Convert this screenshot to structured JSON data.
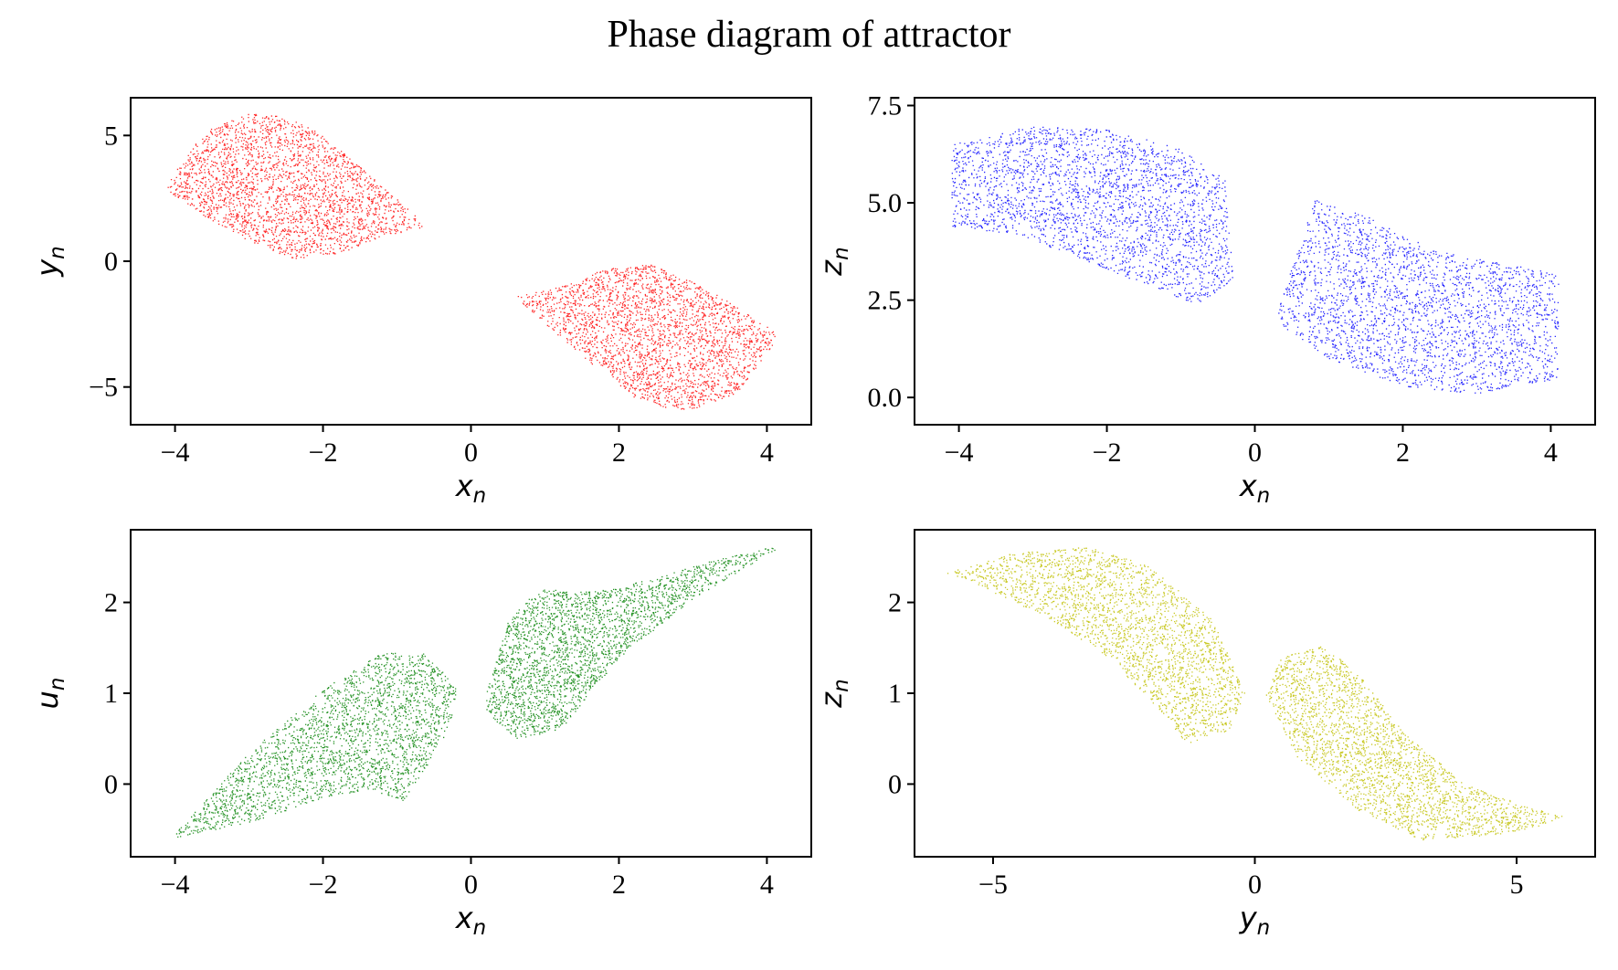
{
  "figure": {
    "title": "Phase diagram of attractor"
  },
  "chart_data": [
    {
      "type": "scatter",
      "xlabel": "x",
      "xlabel_sub": "n",
      "ylabel": "y",
      "ylabel_sub": "n",
      "xlim": [
        -4.6,
        4.6
      ],
      "ylim": [
        -6.5,
        6.5
      ],
      "xticks": [
        -4,
        -2,
        0,
        2,
        4
      ],
      "yticks": [
        -5,
        0,
        5
      ],
      "color": "#ff0000",
      "series": [
        {
          "region": "left-lobe",
          "x": [
            -4.1,
            -3.6,
            -3.0,
            -2.6,
            -2.2,
            -1.8,
            -1.2,
            -0.6,
            -0.3,
            -0.6,
            -1.2,
            -1.8,
            -2.4,
            -3.0,
            -3.6,
            -4.1
          ],
          "y": [
            3.2,
            5.2,
            5.9,
            5.8,
            5.4,
            4.5,
            3.0,
            1.4,
            0.4,
            1.4,
            1.0,
            0.3,
            0.1,
            0.8,
            1.8,
            2.8
          ]
        },
        {
          "region": "right-lobe",
          "x": [
            0.3,
            0.6,
            1.2,
            1.8,
            2.4,
            3.0,
            3.6,
            4.1,
            4.1,
            3.6,
            3.0,
            2.6,
            2.2,
            1.8,
            1.2,
            0.6
          ],
          "y": [
            -0.4,
            -1.4,
            -1.0,
            -0.3,
            -0.1,
            -0.8,
            -1.8,
            -2.8,
            -3.2,
            -5.2,
            -5.9,
            -5.8,
            -5.4,
            -4.5,
            -3.0,
            -1.4
          ]
        }
      ]
    },
    {
      "type": "scatter",
      "xlabel": "x",
      "xlabel_sub": "n",
      "ylabel": "z",
      "ylabel_sub": "n",
      "xlim": [
        -4.6,
        4.6
      ],
      "ylim": [
        -0.7,
        7.7
      ],
      "xticks": [
        -4,
        -2,
        0,
        2,
        4
      ],
      "yticks": [
        0.0,
        2.5,
        5.0,
        7.5
      ],
      "ytick_labels": [
        "0.0",
        "2.5",
        "5.0",
        "7.5"
      ],
      "color": "#0000ff",
      "series": [
        {
          "region": "left-cluster",
          "x": [
            -4.1,
            -3.0,
            -2.0,
            -1.0,
            -0.4,
            -0.3,
            -0.8,
            -1.6,
            -2.4,
            -3.2,
            -4.1
          ],
          "y": [
            6.5,
            7.0,
            6.9,
            6.4,
            5.6,
            3.0,
            2.4,
            3.0,
            3.6,
            4.2,
            4.4
          ]
        },
        {
          "region": "right-cluster",
          "x": [
            0.3,
            0.8,
            1.6,
            2.4,
            3.2,
            4.1,
            4.1,
            3.0,
            2.0,
            1.0,
            0.4
          ],
          "y": [
            2.2,
            5.1,
            4.6,
            3.8,
            3.5,
            3.2,
            0.5,
            0.1,
            0.3,
            1.0,
            1.8
          ]
        }
      ]
    },
    {
      "type": "scatter",
      "xlabel": "x",
      "xlabel_sub": "n",
      "ylabel": "u",
      "ylabel_sub": "n",
      "xlim": [
        -4.6,
        4.6
      ],
      "ylim": [
        -0.8,
        2.8
      ],
      "xticks": [
        -4,
        -2,
        0,
        2,
        4
      ],
      "yticks": [
        0,
        1,
        2
      ],
      "color": "#008000",
      "series": [
        {
          "region": "left-lobe",
          "x": [
            -4.1,
            -3.0,
            -2.0,
            -1.2,
            -0.6,
            -0.2,
            -0.3,
            -0.9,
            -1.4,
            -2.0,
            -3.0,
            -4.1
          ],
          "y": [
            -0.62,
            0.35,
            1.05,
            1.45,
            1.45,
            1.05,
            0.6,
            -0.18,
            -0.05,
            -0.15,
            -0.42,
            -0.6
          ]
        },
        {
          "region": "right-lobe",
          "x": [
            0.2,
            0.5,
            0.9,
            1.6,
            2.4,
            3.2,
            4.1,
            4.1,
            3.0,
            2.0,
            1.2,
            0.6,
            0.2
          ],
          "y": [
            1.0,
            1.8,
            2.15,
            2.12,
            2.25,
            2.45,
            2.62,
            2.58,
            2.05,
            1.4,
            0.6,
            0.5,
            0.8
          ]
        }
      ]
    },
    {
      "type": "scatter",
      "xlabel": "y",
      "xlabel_sub": "n",
      "ylabel": "z",
      "ylabel_sub": "n",
      "xlim": [
        -6.5,
        6.5
      ],
      "ylim": [
        -0.8,
        2.8
      ],
      "xticks": [
        -5,
        0,
        5
      ],
      "yticks": [
        0,
        1,
        2
      ],
      "color": "#bfbf00",
      "series": [
        {
          "region": "left-lobe",
          "x": [
            -5.9,
            -4.6,
            -3.2,
            -2.0,
            -0.8,
            -0.2,
            -0.5,
            -1.3,
            -1.8,
            -2.8,
            -4.0,
            -5.5
          ],
          "y": [
            2.33,
            2.55,
            2.62,
            2.4,
            1.8,
            1.0,
            0.6,
            0.45,
            0.8,
            1.4,
            1.85,
            2.25
          ]
        },
        {
          "region": "right-lobe",
          "x": [
            0.2,
            0.5,
            1.3,
            2.0,
            2.8,
            4.0,
            5.0,
            5.9,
            5.5,
            4.6,
            3.2,
            2.0,
            0.8
          ],
          "y": [
            1.0,
            1.4,
            1.53,
            1.2,
            0.6,
            0.0,
            -0.2,
            -0.35,
            -0.45,
            -0.55,
            -0.62,
            -0.3,
            0.3
          ]
        }
      ]
    }
  ]
}
